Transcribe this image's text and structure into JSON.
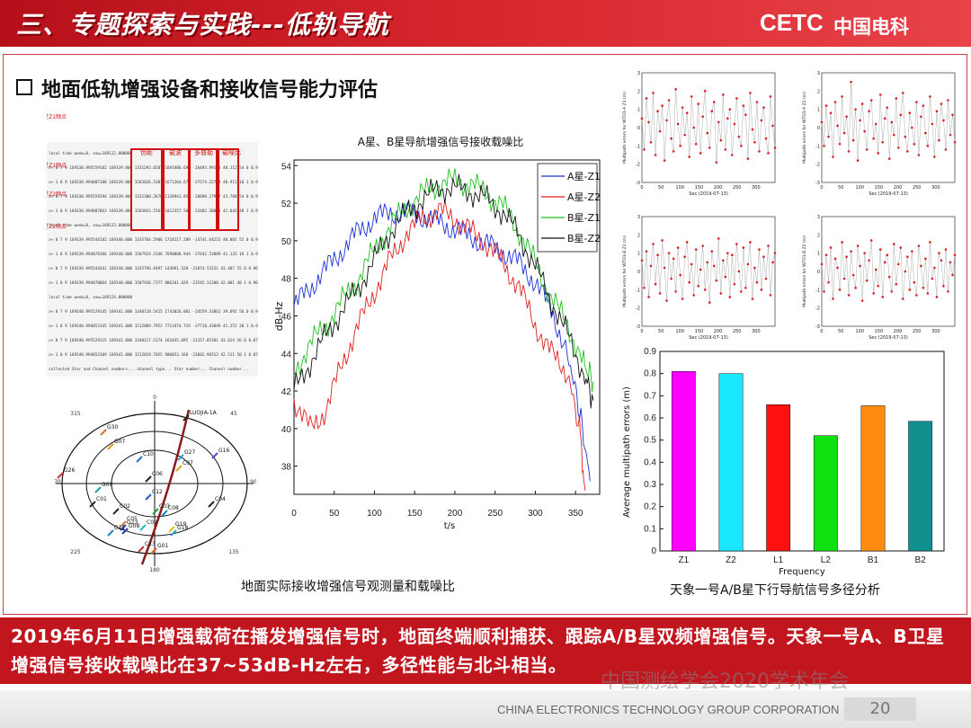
{
  "header": {
    "title": "三、专题探索与实践---低轨导航",
    "logo_latin": "CETC",
    "logo_cn": "中国电科"
  },
  "section": {
    "title": "地面低轨增强设备和接收信号能力评估"
  },
  "observation_table": {
    "header_labels": [
      "伪距",
      "载波",
      "多普勒",
      "载噪比"
    ],
    "side_labels": [
      "B星Z1频点",
      "A星Z1频点",
      "B星Z2频点",
      "A星Z2频点"
    ],
    "rows": [
      "local time week=0, sow=169122.000000",
      ">> 0 7 9  169338.995559182 169339.000  1331293.8287  1693486.691  -26493.99186  40.112  54 0 0.9883",
      ">> 1 0 9  169338.994087188 169339.000  1503826.5381  1671264.677  -37574.22794  40.911  18 1 0.9969",
      ">> 0 7 9  169338.995559294 169339.000  1331300.2676  1128941.853  -20090.17947  43.788  54 0 0.9854",
      ">> 1 0 9  169338.994087063 169339.000  1503843.5561  1012357.503  -22482.38891  42.642  48 1 0.9516",
      "local time week=0, sow=169123.000000",
      ">> 0 7 9  169339.995544182 169340.000  1335704.5986  1718117.289  -14741.64231  40.001  55 0 0.9302",
      ">> 1 0 9  169339.994070186 169340.000  1507924.2346  7690888.944  -27642.53089  41.133  19 1 0.9408",
      ">> 0 7 9  169339.995544261 169340.000  1335796.9497  144891.528  -21074.53231  43.487  55 0 0.9660",
      ">> 1 0 9  169339.994070064 169340.000  1507936.7377  886261.629  -23545.31200  42.001  48 1 0.9687",
      "local time week=0, sow=169124.000000",
      ">> 0 7 9  169340.995529145 169341.000  1340118.5415  1743026.001  -24559.33861  39.692  56 0 0.9455",
      ">> 1 0 9  169340.994053145 169341.000  1512009.7952  7711674.729  -37718.43849  41.252  20 1 0.9555",
      ">> 0 7 9  169340.995529115 169341.000  1340117.5174  161035.695  -21157.05181  43.624  56 0 0.8799",
      ">> 1 0 9  169340.994053109 169341.000  1512019.7055  900053.168  -23602.96512  42.511  50 1 0.8757",
      "collected Star and Channel numbers...   channel type...   Star number...   Channel number..."
    ]
  },
  "skyplot": {
    "azimuth_labels": [
      "0",
      "45",
      "90",
      "135",
      "180",
      "225",
      "270",
      "315"
    ],
    "satellites": [
      "LUOJIA-1A",
      "G30",
      "G07",
      "G16",
      "C10",
      "G27",
      "G26",
      "C07",
      "C06",
      "C12",
      "G09",
      "C02",
      "C04",
      "C01",
      "C08",
      "C03",
      "C05",
      "G23",
      "C09",
      "G01",
      "G11",
      "G18",
      "C13",
      "G19",
      "G08"
    ]
  },
  "left_caption": "地面实际接收增强信号观测量和载噪比",
  "cn_chart": {
    "title": "A星、B星导航增强信号接收载噪比",
    "xlabel": "t/s",
    "ylabel": "dB-Hz",
    "legend": [
      "A星-Z1",
      "A星-Z2",
      "B星-Z1",
      "B星-Z2"
    ],
    "colors": [
      "#1c2fd8",
      "#e02020",
      "#20c020",
      "#111111"
    ]
  },
  "multipath_plots": {
    "ylabels": [
      "Multipath errors for WTD1-A Z1 (m)",
      "Multipath errors for WTD1-A Z2 (m)",
      "Multipath errors for WTD1-B Z1 (m)",
      "Multipath errors for WTD1-B Z2 (m)"
    ],
    "xlabel": "Sec (2019-07-13)",
    "color": "#d82020"
  },
  "bar_caption": "天象一号A/B星下行导航信号多径分析",
  "summary": {
    "text": "2019年6月11日增强载荷在播发增强信号时，地面终端顺利捕获、跟踪A/B星双频增强信号。天象一号A、B卫星增强信号接收载噪比在37~53dB-Hz左右，多径性能与北斗相当。"
  },
  "watermark": "中国测绘学会2020学术年会",
  "footer": {
    "company": "CHINA ELECTRONICS TECHNOLOGY GROUP CORPORATION",
    "page": "20"
  },
  "chart_data": [
    {
      "type": "line",
      "title": "A星、B星导航增强信号接收载噪比",
      "xlabel": "t/s",
      "ylabel": "dB-Hz",
      "xlim": [
        0,
        380
      ],
      "ylim": [
        36.5,
        54.3
      ],
      "xticks": [
        0,
        50,
        100,
        150,
        200,
        250,
        300,
        350
      ],
      "yticks": [
        38,
        40,
        42,
        44,
        46,
        48,
        50,
        52,
        54
      ],
      "legend_position": "top-right",
      "grid": false,
      "series": [
        {
          "name": "A星-Z1",
          "color": "#1c2fd8",
          "x": [
            0,
            20,
            40,
            60,
            80,
            100,
            120,
            140,
            160,
            180,
            200,
            220,
            240,
            260,
            280,
            300,
            320,
            340,
            355,
            368
          ],
          "y": [
            46.5,
            47.5,
            48.5,
            49.5,
            50.5,
            51.2,
            51.5,
            51.5,
            51.3,
            51.0,
            50.6,
            50.2,
            49.8,
            49.4,
            48.8,
            47.8,
            46.3,
            44.0,
            41.0,
            37.2
          ]
        },
        {
          "name": "A星-Z2",
          "color": "#e02020",
          "x": [
            0,
            20,
            40,
            60,
            80,
            100,
            120,
            140,
            160,
            180,
            200,
            220,
            240,
            260,
            280,
            300,
            320,
            340,
            355,
            362
          ],
          "y": [
            41.5,
            40.0,
            41.0,
            43.5,
            45.5,
            47.3,
            49.0,
            50.4,
            51.2,
            51.6,
            51.2,
            50.5,
            49.8,
            48.8,
            47.5,
            45.5,
            44.0,
            43.0,
            40.0,
            36.7
          ]
        },
        {
          "name": "B星-Z1",
          "color": "#20c020",
          "x": [
            0,
            20,
            40,
            60,
            80,
            100,
            120,
            140,
            160,
            180,
            200,
            220,
            240,
            260,
            280,
            300,
            320,
            340,
            360,
            372
          ],
          "y": [
            43.0,
            44.5,
            45.5,
            46.8,
            48.0,
            49.5,
            50.8,
            51.8,
            52.5,
            53.0,
            53.2,
            53.0,
            52.5,
            51.8,
            50.5,
            48.8,
            47.0,
            45.5,
            43.5,
            42.5
          ]
        },
        {
          "name": "B星-Z2",
          "color": "#111111",
          "x": [
            0,
            20,
            40,
            60,
            80,
            100,
            120,
            140,
            160,
            180,
            200,
            220,
            240,
            260,
            280,
            300,
            320,
            340,
            360,
            372
          ],
          "y": [
            42.0,
            43.5,
            45.0,
            46.3,
            47.5,
            49.0,
            50.5,
            51.5,
            52.2,
            52.8,
            52.8,
            52.6,
            52.2,
            51.5,
            50.3,
            48.6,
            46.8,
            45.0,
            43.0,
            41.5
          ]
        }
      ]
    },
    {
      "type": "scatter",
      "ylabel": "Multipath errors for WTD1-A Z1 (m)",
      "xlabel": "Sec (2019-07-13)",
      "xlim": [
        0,
        350
      ],
      "ylim": [
        -3,
        3
      ],
      "xticks": [
        0,
        50,
        100,
        150,
        200,
        250,
        300
      ],
      "yticks": [
        -3,
        -2,
        -1,
        0,
        1,
        2,
        3
      ],
      "series": [
        {
          "values": [
            0.5,
            -1.2,
            1.6,
            0.3,
            -0.8,
            1.9,
            -1.5,
            0.9,
            -0.2,
            1.2,
            -1.8,
            0.4,
            1.5,
            -0.6,
            -1.3,
            2.1,
            0.2,
            -1.0,
            1.1,
            -0.4,
            0.8,
            -1.6,
            1.7,
            0.0,
            -0.9,
            1.3,
            -1.4,
            0.6,
            2.0,
            -0.3,
            -1.1,
            0.9,
            1.4,
            -1.9,
            0.3,
            -0.7,
            1.8,
            -1.2,
            0.5,
            1.0,
            -1.5,
            0.2,
            1.6,
            -0.5,
            -1.0,
            1.2,
            0.7,
            -1.7,
            1.9,
            -0.1,
            -0.8,
            1.4,
            -1.3,
            0.4,
            1.1,
            -0.6,
            -1.4,
            1.7,
            0.1,
            -1.1
          ]
        }
      ]
    },
    {
      "type": "scatter",
      "ylabel": "Multipath errors for WTD1-A Z2 (m)",
      "xlabel": "Sec (2019-07-13)",
      "xlim": [
        0,
        350
      ],
      "ylim": [
        -3,
        3
      ],
      "xticks": [
        0,
        50,
        100,
        150,
        200,
        250,
        300
      ],
      "yticks": [
        -3,
        -2,
        -1,
        0,
        1,
        2,
        3
      ],
      "series": [
        {
          "values": [
            0.3,
            -1.0,
            1.2,
            -0.5,
            0.8,
            -1.6,
            1.4,
            0.1,
            -0.9,
            1.7,
            -0.3,
            0.6,
            -1.3,
            2.5,
            -0.7,
            1.0,
            -1.8,
            0.4,
            1.3,
            -0.2,
            -1.2,
            0.9,
            1.5,
            -0.6,
            0.2,
            -1.4,
            1.8,
            -0.8,
            0.5,
            1.1,
            -1.7,
            0.3,
            -0.4,
            1.6,
            -1.1,
            0.7,
            1.9,
            -0.5,
            -1.3,
            0.8,
            0.0,
            -0.9,
            1.4,
            -1.5,
            0.6,
            1.2,
            -0.3,
            -1.0,
            1.7,
            0.2,
            -1.6,
            0.9,
            -0.7,
            1.3,
            0.4,
            -1.2,
            1.5,
            -0.4,
            0.7,
            -0.8
          ]
        }
      ]
    },
    {
      "type": "scatter",
      "ylabel": "Multipath errors for WTD1-B Z1 (m)",
      "xlabel": "Sec (2019-07-13)",
      "xlim": [
        0,
        350
      ],
      "ylim": [
        -3,
        3
      ],
      "xticks": [
        0,
        50,
        100,
        150,
        200,
        250,
        300
      ],
      "yticks": [
        -3,
        -2,
        -1,
        0,
        1,
        2,
        3
      ],
      "series": [
        {
          "values": [
            0.6,
            -0.9,
            1.1,
            -1.4,
            0.3,
            1.5,
            -0.7,
            0.9,
            -1.2,
            1.7,
            0.2,
            -1.6,
            1.0,
            -0.4,
            0.7,
            -1.1,
            1.3,
            -0.2,
            -1.5,
            0.8,
            1.6,
            -0.6,
            0.4,
            -1.3,
            1.2,
            -0.8,
            0.1,
            1.4,
            -1.0,
            0.5,
            -1.7,
            1.1,
            0.3,
            -0.5,
            1.8,
            -1.2,
            0.6,
            -0.3,
            1.0,
            -1.4,
            0.9,
            -0.7,
            1.5,
            0.0,
            -1.1,
            1.3,
            -0.9,
            0.4,
            1.6,
            -1.5,
            0.2,
            -0.6,
            1.2,
            -1.0,
            0.8,
            -0.4,
            1.4,
            -1.3,
            0.5,
            1.0
          ]
        }
      ]
    },
    {
      "type": "scatter",
      "ylabel": "Multipath errors for WTD1-B Z2 (m)",
      "xlabel": "Sec (2019-07-13)",
      "xlim": [
        0,
        350
      ],
      "ylim": [
        -3,
        3
      ],
      "xticks": [
        0,
        50,
        100,
        150,
        200,
        250,
        300
      ],
      "yticks": [
        -3,
        -2,
        -1,
        0,
        1,
        2,
        3
      ],
      "series": [
        {
          "values": [
            0.4,
            -1.1,
            0.9,
            -0.6,
            1.3,
            -1.5,
            0.7,
            0.2,
            -1.0,
            1.6,
            -0.4,
            0.8,
            -1.3,
            1.1,
            -0.2,
            -0.9,
            1.4,
            0.3,
            -1.6,
            1.0,
            -0.5,
            0.6,
            1.7,
            -1.2,
            0.1,
            -0.8,
            1.2,
            -1.4,
            0.5,
            0.9,
            -0.3,
            -1.1,
            1.5,
            -0.7,
            0.4,
            1.3,
            -1.5,
            0.0,
            0.8,
            -1.0,
            1.1,
            -0.6,
            -1.3,
            1.4,
            0.3,
            -0.9,
            0.7,
            -1.2,
            1.6,
            -0.4,
            0.2,
            -1.4,
            1.0,
            0.6,
            -0.8,
            1.2,
            -1.1,
            0.5,
            -0.2,
            0.9
          ]
        }
      ]
    },
    {
      "type": "bar",
      "categories": [
        "Z1",
        "Z2",
        "L1",
        "L2",
        "B1",
        "B2"
      ],
      "values": [
        0.81,
        0.8,
        0.66,
        0.52,
        0.655,
        0.585
      ],
      "colors": [
        "#ff00ff",
        "#19e8ff",
        "#ff1010",
        "#10e010",
        "#ff8c10",
        "#108f8f"
      ],
      "xlabel": "Frequency",
      "ylabel": "Average multipath errors (m)",
      "ylim": [
        0,
        0.9
      ],
      "yticks": [
        0,
        0.1,
        0.2,
        0.3,
        0.4,
        0.5,
        0.6,
        0.7,
        0.8,
        0.9
      ],
      "grid": false
    }
  ]
}
